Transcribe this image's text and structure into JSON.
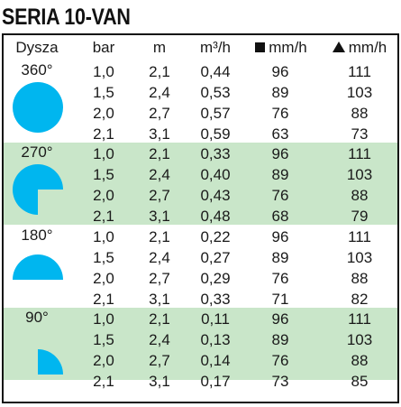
{
  "title": "SERIA 10-VAN",
  "header": {
    "dysza": "Dysza",
    "bar": "bar",
    "m": "m",
    "m3h": "m³/h",
    "mmh_square": "mm/h",
    "mmh_triangle": "mm/h"
  },
  "colors": {
    "shape": "#00b6ef",
    "alt_row": "#c9e6c9",
    "border": "#111111"
  },
  "groups": [
    {
      "label": "360°",
      "shape": "full-circle",
      "rows": [
        {
          "bar": "1,0",
          "m": "2,1",
          "m3h": "0,44",
          "sq": "96",
          "tri": "111"
        },
        {
          "bar": "1,5",
          "m": "2,4",
          "m3h": "0,53",
          "sq": "89",
          "tri": "103"
        },
        {
          "bar": "2,0",
          "m": "2,7",
          "m3h": "0,57",
          "sq": "76",
          "tri": "88"
        },
        {
          "bar": "2,1",
          "m": "3,1",
          "m3h": "0,59",
          "sq": "63",
          "tri": "73"
        }
      ]
    },
    {
      "label": "270°",
      "shape": "three-quarter-circle",
      "rows": [
        {
          "bar": "1,0",
          "m": "2,1",
          "m3h": "0,33",
          "sq": "96",
          "tri": "111"
        },
        {
          "bar": "1,5",
          "m": "2,4",
          "m3h": "0,40",
          "sq": "89",
          "tri": "103"
        },
        {
          "bar": "2,0",
          "m": "2,7",
          "m3h": "0,43",
          "sq": "76",
          "tri": "88"
        },
        {
          "bar": "2,1",
          "m": "3,1",
          "m3h": "0,48",
          "sq": "68",
          "tri": "79"
        }
      ]
    },
    {
      "label": "180°",
      "shape": "half-circle",
      "rows": [
        {
          "bar": "1,0",
          "m": "2,1",
          "m3h": "0,22",
          "sq": "96",
          "tri": "111"
        },
        {
          "bar": "1,5",
          "m": "2,4",
          "m3h": "0,27",
          "sq": "89",
          "tri": "103"
        },
        {
          "bar": "2,0",
          "m": "2,7",
          "m3h": "0,29",
          "sq": "76",
          "tri": "88"
        },
        {
          "bar": "2,1",
          "m": "3,1",
          "m3h": "0,33",
          "sq": "71",
          "tri": "82"
        }
      ]
    },
    {
      "label": "90°",
      "shape": "quarter-circle",
      "rows": [
        {
          "bar": "1,0",
          "m": "2,1",
          "m3h": "0,11",
          "sq": "96",
          "tri": "111"
        },
        {
          "bar": "1,5",
          "m": "2,4",
          "m3h": "0,13",
          "sq": "89",
          "tri": "103"
        },
        {
          "bar": "2,0",
          "m": "2,7",
          "m3h": "0,14",
          "sq": "76",
          "tri": "88"
        },
        {
          "bar": "2,1",
          "m": "3,1",
          "m3h": "0,17",
          "sq": "73",
          "tri": "85"
        }
      ]
    }
  ]
}
